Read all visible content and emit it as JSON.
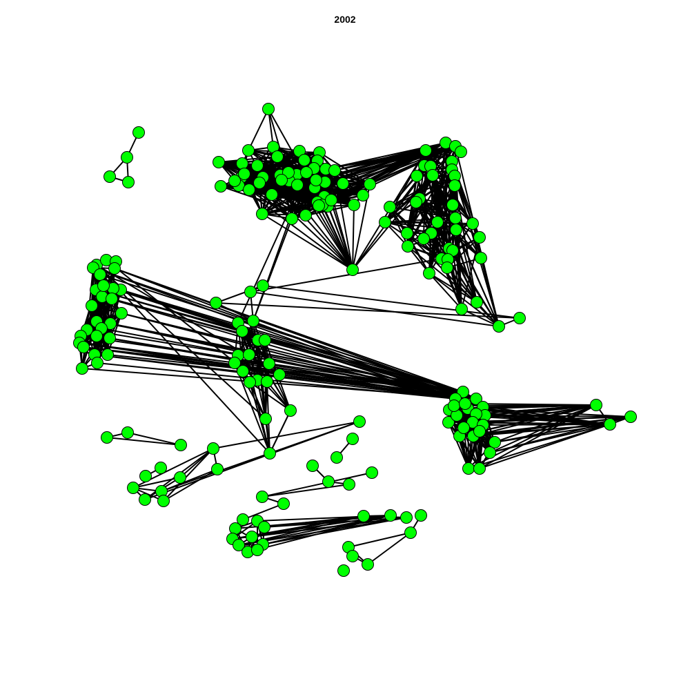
{
  "title": "2002",
  "colors": {
    "node_fill": "#00ff00",
    "node_stroke": "#000000",
    "edge": "#000000",
    "background": "#ffffff"
  }
}
